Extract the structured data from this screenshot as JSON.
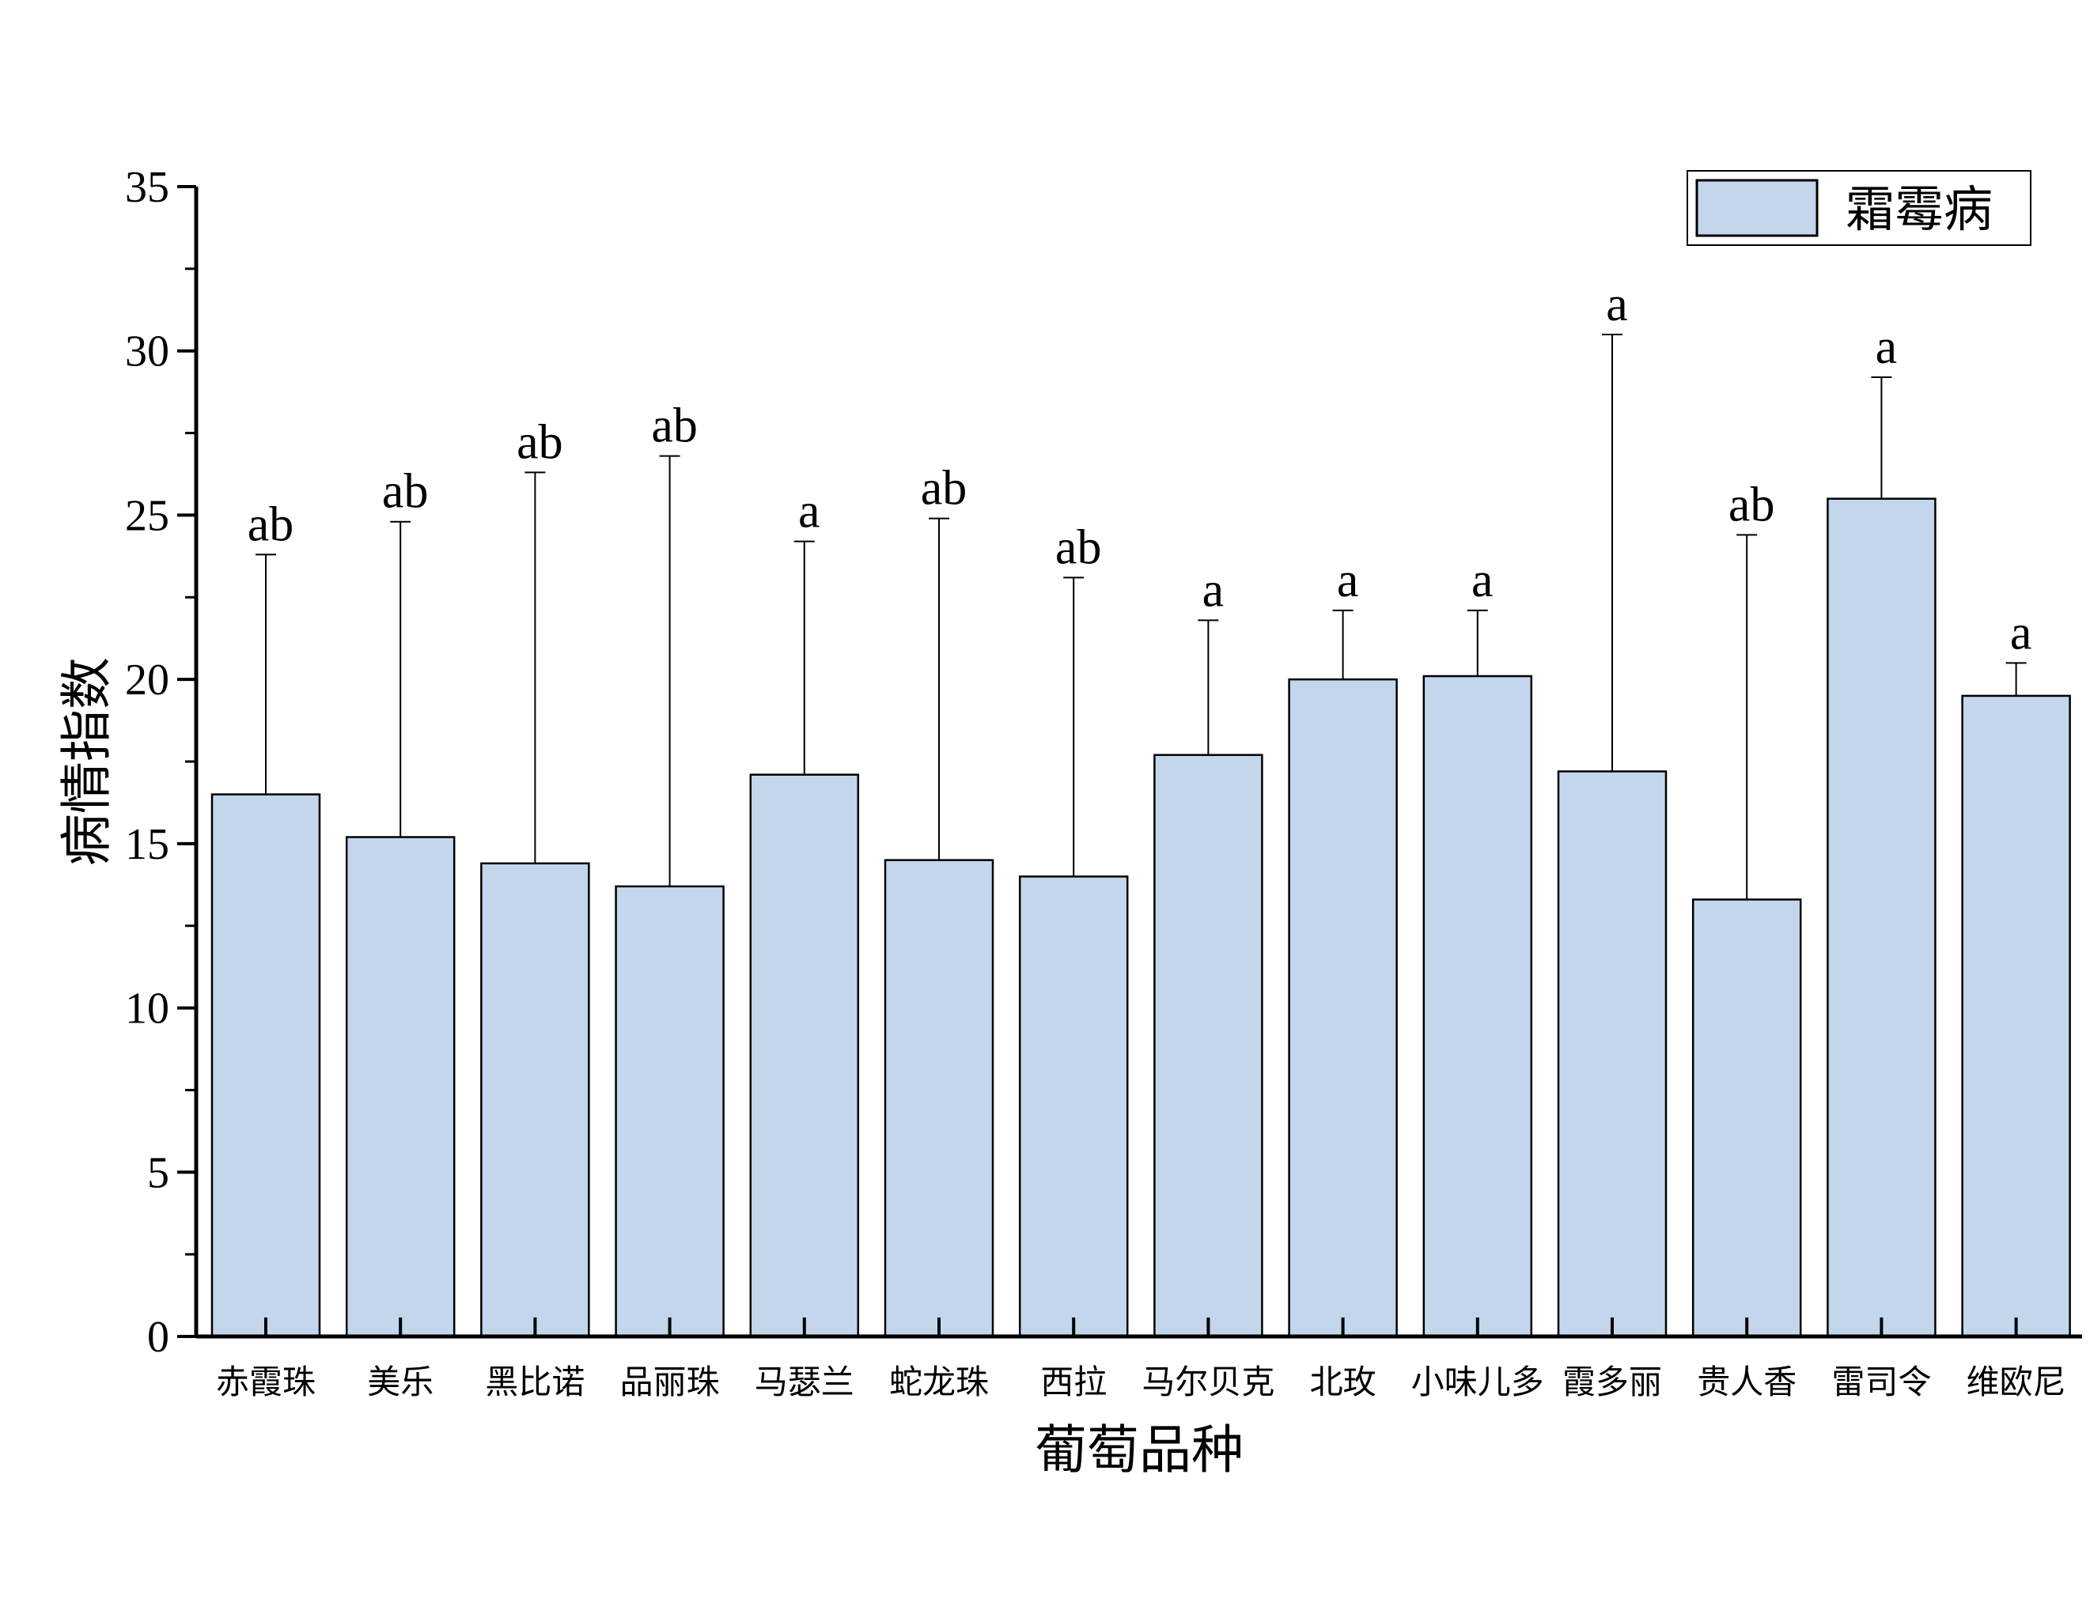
{
  "chart_data": {
    "type": "bar",
    "title": "",
    "xlabel": "葡萄品种",
    "ylabel": "病情指数",
    "ylim": [
      0,
      35
    ],
    "yticks": [
      0,
      5,
      10,
      15,
      20,
      25,
      30,
      35
    ],
    "grid": false,
    "legend_position": "top-right",
    "categories": [
      "赤霞珠",
      "美乐",
      "黑比诺",
      "品丽珠",
      "马瑟兰",
      "蛇龙珠",
      "西拉",
      "马尔贝克",
      "北玫",
      "小味儿多",
      "霞多丽",
      "贵人香",
      "雷司令",
      "维欧尼"
    ],
    "series": [
      {
        "name": "霜霉病",
        "color": "#c3d6eb",
        "values": [
          16.5,
          15.2,
          14.4,
          13.7,
          17.1,
          14.5,
          14.0,
          17.7,
          20.0,
          20.1,
          17.2,
          13.3,
          25.5,
          19.5
        ],
        "error_upper": [
          23.8,
          24.8,
          26.3,
          26.8,
          24.2,
          24.9,
          23.1,
          21.8,
          22.1,
          22.1,
          30.5,
          24.4,
          29.2,
          20.5
        ],
        "significance": [
          "ab",
          "ab",
          "ab",
          "ab",
          "a",
          "ab",
          "ab",
          "a",
          "a",
          "a",
          "a",
          "ab",
          "a",
          "a"
        ]
      }
    ]
  }
}
